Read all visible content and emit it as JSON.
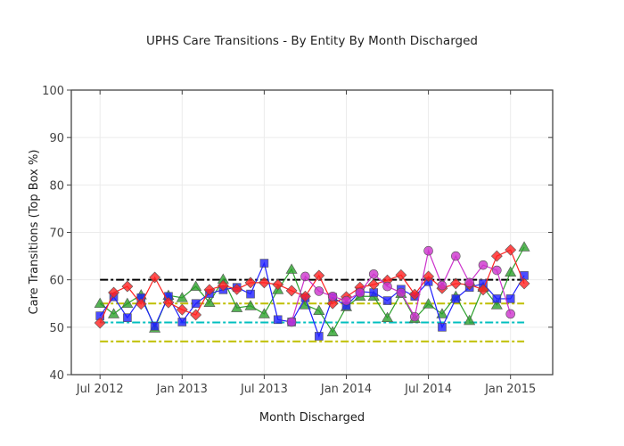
{
  "chart_data": {
    "type": "line",
    "title": "UPHS Care Transitions - By Entity By Month Discharged",
    "xlabel": "Month Discharged",
    "ylabel": "Care Transitions (Top Box %)",
    "ylim": [
      40,
      100
    ],
    "yticks": [
      40,
      50,
      60,
      70,
      80,
      90,
      100
    ],
    "xtick_labels": [
      "Jul 2012",
      "Jan 2013",
      "Jul 2013",
      "Jan 2014",
      "Jul 2014",
      "Jan 2015"
    ],
    "xtick_month_index": [
      0,
      6,
      12,
      18,
      24,
      30
    ],
    "x_months": [
      "2012-07",
      "2012-08",
      "2012-09",
      "2012-10",
      "2012-11",
      "2012-12",
      "2013-01",
      "2013-02",
      "2013-03",
      "2013-04",
      "2013-05",
      "2013-06",
      "2013-07",
      "2013-08",
      "2013-09",
      "2013-10",
      "2013-11",
      "2013-12",
      "2014-01",
      "2014-02",
      "2014-03",
      "2014-04",
      "2014-05",
      "2014-06",
      "2014-07",
      "2014-08",
      "2014-09",
      "2014-10",
      "2014-11",
      "2014-12",
      "2015-01",
      "2015-02"
    ],
    "grid": true,
    "legend": "none",
    "series": [
      {
        "name": "green-triangle",
        "color": "#2ca02c",
        "marker": "triangle",
        "start_index": 0,
        "values": [
          55.0,
          52.8,
          55.0,
          56.8,
          49.8,
          56.7,
          56.2,
          58.6,
          55.2,
          60.1,
          54.1,
          54.5,
          52.8,
          57.9,
          62.2,
          54.7,
          53.5,
          49.0,
          54.3,
          56.5,
          56.5,
          52.0,
          57.1,
          51.8,
          54.9,
          52.8,
          56.5,
          51.4,
          58.4,
          54.7,
          61.6,
          66.9
        ]
      },
      {
        "name": "blue-square",
        "color": "#1f1fff",
        "marker": "square",
        "start_index": 0,
        "values": [
          52.4,
          56.4,
          52.0,
          56.2,
          50.2,
          56.5,
          51.1,
          55.0,
          57.1,
          57.9,
          58.4,
          57.0,
          63.5,
          51.6,
          51.1,
          56.2,
          48.1,
          56.3,
          54.5,
          57.5,
          57.3,
          55.6,
          58.0,
          56.5,
          59.6,
          50.0,
          56.0,
          58.4,
          59.2,
          56.0,
          56.0,
          60.9
        ]
      },
      {
        "name": "red-diamond",
        "color": "#ff2020",
        "marker": "diamond",
        "start_index": 0,
        "values": [
          50.9,
          57.3,
          58.6,
          54.9,
          60.5,
          55.2,
          53.7,
          52.6,
          57.9,
          58.8,
          58.0,
          59.4,
          59.4,
          59.0,
          57.7,
          56.5,
          60.9,
          55.0,
          56.4,
          58.4,
          59.0,
          59.9,
          61.0,
          56.9,
          60.7,
          58.2,
          59.2,
          59.0,
          57.9,
          65.0,
          66.3,
          59.2
        ]
      },
      {
        "name": "purple-circle",
        "color": "#cc33cc",
        "marker": "circle",
        "start_index": 14,
        "values": [
          51.1,
          60.7,
          57.6,
          56.5,
          55.6,
          57.3,
          61.2,
          58.6,
          57.3,
          52.2,
          66.1,
          58.8,
          65.0,
          59.4,
          63.1,
          62.0,
          52.8
        ]
      }
    ],
    "reference_lines": [
      {
        "name": "target-60",
        "value": 60,
        "color": "#000000"
      },
      {
        "name": "upper-55",
        "value": 55,
        "color": "#bfbf00"
      },
      {
        "name": "mid-51",
        "value": 51,
        "color": "#00bfbf"
      },
      {
        "name": "lower-47",
        "value": 47,
        "color": "#bfbf00"
      }
    ]
  }
}
